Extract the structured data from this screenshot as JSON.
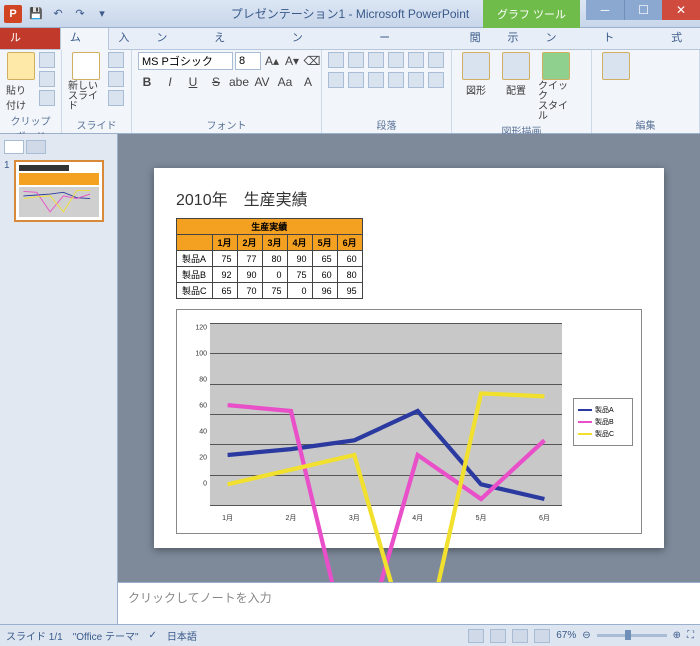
{
  "window": {
    "title": "プレゼンテーション1 - Microsoft PowerPoint",
    "context_tab": "グラフ ツール"
  },
  "ribbon": {
    "file": "ファイル",
    "tabs": [
      "ホーム",
      "挿入",
      "デザイン",
      "画面切り替え",
      "アニメーション",
      "スライド ショー",
      "校閲",
      "表示",
      "デザイン",
      "レイアウト",
      "書式"
    ],
    "active": 0,
    "groups": {
      "clipboard": {
        "label": "クリップボード",
        "paste": "貼り付け"
      },
      "slides": {
        "label": "スライド",
        "new_slide": "新しい\nスライド"
      },
      "font": {
        "label": "フォント",
        "name": "MS Pゴシック",
        "size": "8",
        "buttons": [
          "B",
          "I",
          "U",
          "S",
          "abe",
          "AV",
          "Aa",
          "A"
        ]
      },
      "paragraph": {
        "label": "段落"
      },
      "drawing": {
        "label": "図形描画",
        "shapes": "図形",
        "arrange": "配置",
        "quick": "クイック\nスタイル"
      },
      "editing": {
        "label": "編集"
      }
    }
  },
  "slide": {
    "title": "2010年　生産実績",
    "table": {
      "header": "生産実績",
      "columns": [
        "",
        "1月",
        "2月",
        "3月",
        "4月",
        "5月",
        "6月"
      ],
      "rows": [
        [
          "製品A",
          75,
          77,
          80,
          90,
          65,
          60
        ],
        [
          "製品B",
          92,
          90,
          0,
          75,
          60,
          80
        ],
        [
          "製品C",
          65,
          70,
          75,
          0,
          96,
          95
        ]
      ]
    },
    "chart": {
      "type": "line",
      "ylim": [
        0,
        120
      ],
      "ytick_step": 20,
      "x_categories": [
        "1月",
        "2月",
        "3月",
        "4月",
        "5月",
        "6月"
      ],
      "plot_bg": "#c8c8c8",
      "grid_color": "#555555",
      "series": [
        {
          "name": "製品A",
          "color": "#2b3aa0",
          "values": [
            75,
            77,
            80,
            90,
            65,
            60
          ]
        },
        {
          "name": "製品B",
          "color": "#e84fc8",
          "values": [
            92,
            90,
            0,
            75,
            60,
            80
          ]
        },
        {
          "name": "製品C",
          "color": "#f2e02e",
          "values": [
            65,
            70,
            75,
            0,
            96,
            95
          ]
        }
      ]
    }
  },
  "notes_placeholder": "クリックしてノートを入力",
  "status": {
    "slide_counter": "スライド 1/1",
    "theme": "\"Office テーマ\"",
    "lang": "日本語",
    "zoom": "67%"
  }
}
